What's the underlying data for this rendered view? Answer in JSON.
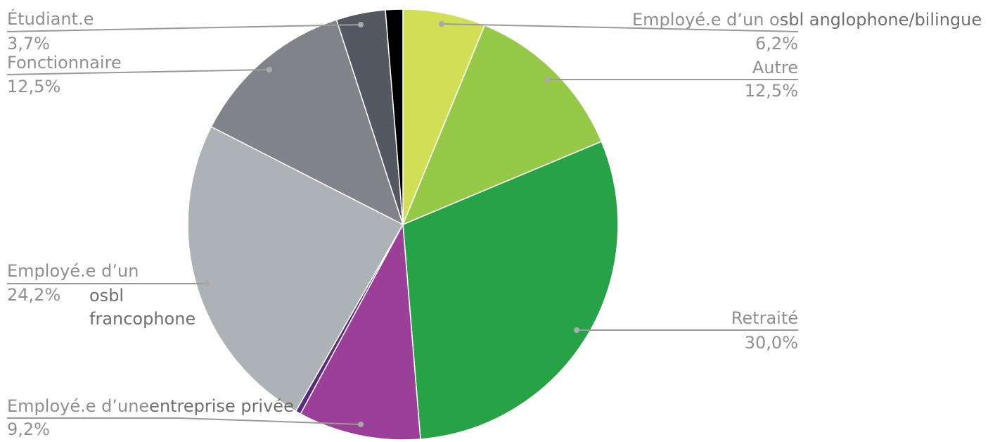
{
  "chart_data": {
    "type": "pie",
    "title": "",
    "start_angle_deg": 0,
    "direction": "clockwise",
    "slices": [
      {
        "name": "Employé.e d’un osbl anglophone/bilingue",
        "value": 6.2,
        "label_value": "6,2%",
        "color": "#d0df55"
      },
      {
        "name": "Autre",
        "value": 12.5,
        "label_value": "12,5%",
        "color": "#97c948"
      },
      {
        "name": "Retraité",
        "value": 30.0,
        "label_value": "30,0%",
        "color": "#27a247"
      },
      {
        "name": "Employé.e d’une entreprise privée",
        "value": 9.2,
        "label_value": "9,2%",
        "color": "#9b3f98"
      },
      {
        "name": "",
        "value": 0.4,
        "label_value": "",
        "color": "#5b2a7a"
      },
      {
        "name": "Employé.e d’un osbl francophone",
        "value": 24.2,
        "label_value": "24,2%",
        "color": "#adb2b6"
      },
      {
        "name": "Fonctionnaire",
        "value": 12.5,
        "label_value": "12,5%",
        "color": "#808389"
      },
      {
        "name": "Étudiant.e",
        "value": 3.7,
        "label_value": "3,7%",
        "color": "#545961"
      },
      {
        "name": "",
        "value": 1.3,
        "label_value": "",
        "color": "#000000"
      }
    ]
  },
  "labels": {
    "anglophone_a": "Employé.e d’un o",
    "anglophone_b": "sbl anglophone/bilingue",
    "anglophone_pct": "6,2%",
    "autre": "Autre",
    "autre_pct": "12,5%",
    "retraite": "Retraité",
    "retraite_pct": "30,0%",
    "privee_a": "Employé.e d’une",
    "privee_b": "entreprise privée",
    "privee_pct": "9,2%",
    "francophone_a": "Employé.e d’un",
    "francophone_b": "osbl",
    "francophone_c": "francophone",
    "francophone_pct": "24,2%",
    "fonctionnaire": "Fonctionnaire",
    "fonctionnaire_pct": "12,5%",
    "etudiant": "Étudiant.e",
    "etudiant_pct": "3,7%"
  }
}
